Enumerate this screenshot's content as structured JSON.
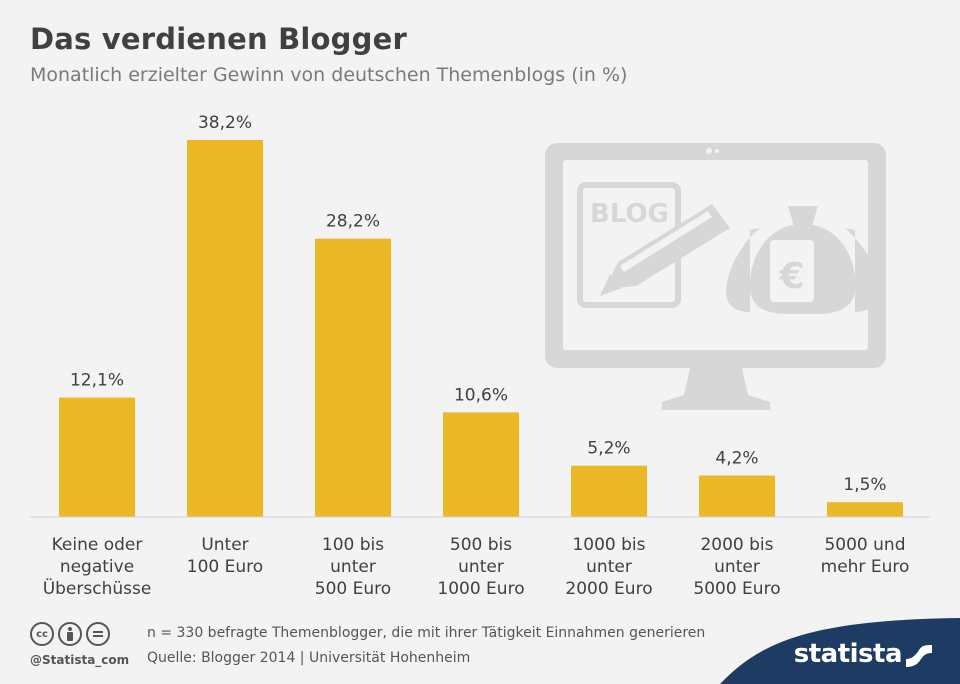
{
  "title": "Das verdienen Blogger",
  "subtitle": "Monatlich erzielter Gewinn von deutschen Themenblogs (in %)",
  "chart_data": {
    "type": "bar",
    "title": "Das verdienen Blogger",
    "subtitle": "Monatlich erzielter Gewinn von deutschen Themenblogs (in %)",
    "categories": [
      [
        "Keine oder",
        "negative",
        "Überschüsse"
      ],
      [
        "Unter",
        "100 Euro"
      ],
      [
        "100 bis",
        "unter",
        "500 Euro"
      ],
      [
        "500 bis",
        "unter",
        "1000 Euro"
      ],
      [
        "1000 bis",
        "unter",
        "2000 Euro"
      ],
      [
        "2000 bis",
        "unter",
        "5000 Euro"
      ],
      [
        "5000 und",
        "mehr Euro"
      ]
    ],
    "values": [
      12.1,
      38.2,
      28.2,
      10.6,
      5.2,
      4.2,
      1.5
    ],
    "value_labels": [
      "12,1%",
      "38,2%",
      "28,2%",
      "10,6%",
      "5,2%",
      "4,2%",
      "1,5%"
    ],
    "unit": "%",
    "ylim": [
      0,
      40
    ],
    "grid": false,
    "color": "#ebb828"
  },
  "illustration": {
    "blog_text": "BLOG",
    "currency_symbol": "€"
  },
  "footer": {
    "cc_icons": [
      "cc",
      "by",
      "nd"
    ],
    "handle": "@Statista_com",
    "note": "n = 330 befragte Themenblogger, die mit ihrer Tätigkeit Einnahmen generieren",
    "source": "Quelle: Blogger 2014 | Universität Hohenheim",
    "brand": "statista"
  },
  "colors": {
    "bar": "#ebb828",
    "title": "#404040",
    "subtitle": "#7a7a7a",
    "brand_blue": "#1d3b63",
    "illustration": "#d7d7d7"
  }
}
